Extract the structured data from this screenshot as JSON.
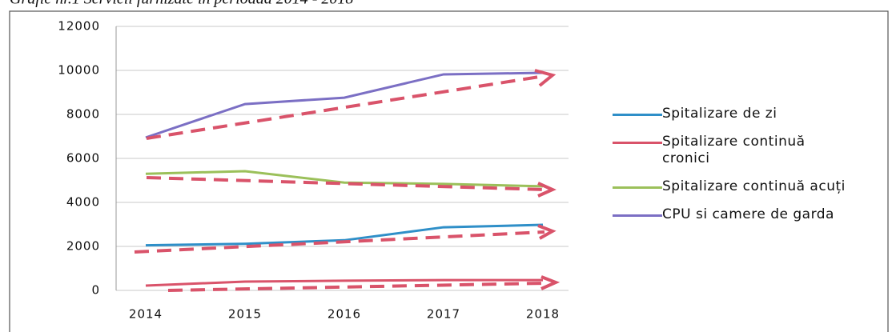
{
  "chart_data": {
    "type": "line",
    "title": "Grafic nr.1 Servicii furnizate în perioada 2014 - 2018",
    "categories": [
      "2014",
      "2015",
      "2016",
      "2017",
      "2018"
    ],
    "series": [
      {
        "name": "Spitalizare de zi",
        "color": "#2f8fc8",
        "values": [
          2050,
          2120,
          2280,
          2870,
          2980
        ]
      },
      {
        "name": "Spitalizare continuă cronici",
        "color": "#d9536a",
        "values": [
          220,
          400,
          440,
          470,
          470
        ]
      },
      {
        "name": "Spitalizare continuă acuți",
        "color": "#9bc05a",
        "values": [
          5300,
          5420,
          4900,
          4840,
          4730
        ]
      },
      {
        "name": "CPU si camere de garda",
        "color": "#7b6fc4",
        "values": [
          6950,
          8470,
          8760,
          9820,
          9890
        ]
      }
    ],
    "ylim": [
      0,
      12000
    ],
    "yticks": [
      0,
      2000,
      4000,
      6000,
      8000,
      10000,
      12000
    ],
    "grid": true,
    "legend": "right"
  }
}
